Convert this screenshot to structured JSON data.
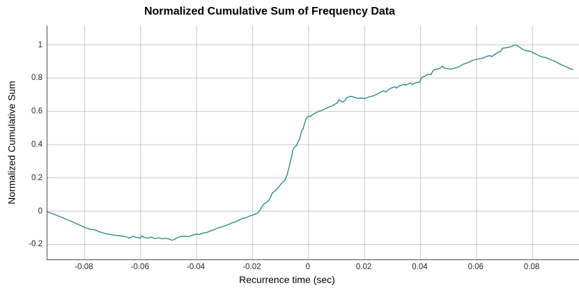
{
  "title": "Normalized Cumulative Sum of Frequency Data",
  "axes": {
    "xlabel": "Recurrence time (sec)",
    "ylabel": "Normalized Cumulative Sum",
    "x_ticks": {
      "values": [
        -0.08,
        -0.06,
        -0.04,
        -0.02,
        0,
        0.02,
        0.04,
        0.06,
        0.08
      ],
      "labels": [
        "-0.08",
        "-0.06",
        "-0.04",
        "-0.02",
        "0",
        "0.02",
        "0.04",
        "0.06",
        "0.08"
      ]
    },
    "y_ticks": {
      "values": [
        -0.2,
        0,
        0.2,
        0.4,
        0.6,
        0.8,
        1
      ],
      "labels": [
        "-0.2",
        "0",
        "0.2",
        "0.4",
        "0.6",
        "0.8",
        "1"
      ]
    }
  },
  "colors": {
    "line": "#2c8c8c",
    "grid": "#c7c7c7",
    "axis": "#4d4d4d",
    "background": "#ffffff",
    "text": "#262626"
  },
  "chart_data": {
    "type": "line",
    "title": "Normalized Cumulative Sum of Frequency Data",
    "xlabel": "Recurrence time (sec)",
    "ylabel": "Normalized Cumulative Sum",
    "xlim": [
      -0.0933,
      0.0969
    ],
    "ylim": [
      -0.29,
      1.115
    ],
    "grid": true,
    "legend": "none",
    "points": [
      [
        -0.0933,
        -0.004
      ],
      [
        -0.092,
        -0.012
      ],
      [
        -0.0907,
        -0.02
      ],
      [
        -0.0894,
        -0.029
      ],
      [
        -0.0881,
        -0.038
      ],
      [
        -0.0868,
        -0.047
      ],
      [
        -0.0855,
        -0.056
      ],
      [
        -0.0842,
        -0.065
      ],
      [
        -0.0829,
        -0.075
      ],
      [
        -0.0816,
        -0.085
      ],
      [
        -0.0803,
        -0.095
      ],
      [
        -0.079,
        -0.104
      ],
      [
        -0.0777,
        -0.11
      ],
      [
        -0.0764,
        -0.112
      ],
      [
        -0.0751,
        -0.122
      ],
      [
        -0.0738,
        -0.128
      ],
      [
        -0.0725,
        -0.135
      ],
      [
        -0.0712,
        -0.139
      ],
      [
        -0.0699,
        -0.143
      ],
      [
        -0.0686,
        -0.146
      ],
      [
        -0.0673,
        -0.148
      ],
      [
        -0.066,
        -0.151
      ],
      [
        -0.0647,
        -0.156
      ],
      [
        -0.064,
        -0.162
      ],
      [
        -0.0634,
        -0.158
      ],
      [
        -0.0627,
        -0.15
      ],
      [
        -0.0621,
        -0.155
      ],
      [
        -0.0614,
        -0.158
      ],
      [
        -0.0601,
        -0.163
      ],
      [
        -0.0594,
        -0.148
      ],
      [
        -0.0588,
        -0.158
      ],
      [
        -0.0575,
        -0.161
      ],
      [
        -0.0562,
        -0.157
      ],
      [
        -0.0549,
        -0.164
      ],
      [
        -0.0536,
        -0.16
      ],
      [
        -0.0523,
        -0.166
      ],
      [
        -0.051,
        -0.163
      ],
      [
        -0.0497,
        -0.168
      ],
      [
        -0.0488,
        -0.175
      ],
      [
        -0.0478,
        -0.17
      ],
      [
        -0.0468,
        -0.158
      ],
      [
        -0.0455,
        -0.152
      ],
      [
        -0.0442,
        -0.15
      ],
      [
        -0.0429,
        -0.153
      ],
      [
        -0.0416,
        -0.146
      ],
      [
        -0.0403,
        -0.139
      ],
      [
        -0.039,
        -0.14
      ],
      [
        -0.0377,
        -0.132
      ],
      [
        -0.0364,
        -0.128
      ],
      [
        -0.0351,
        -0.119
      ],
      [
        -0.0338,
        -0.112
      ],
      [
        -0.0325,
        -0.102
      ],
      [
        -0.0312,
        -0.096
      ],
      [
        -0.0299,
        -0.089
      ],
      [
        -0.0286,
        -0.08
      ],
      [
        -0.0273,
        -0.07
      ],
      [
        -0.026,
        -0.064
      ],
      [
        -0.0247,
        -0.052
      ],
      [
        -0.0234,
        -0.043
      ],
      [
        -0.0221,
        -0.038
      ],
      [
        -0.0208,
        -0.028
      ],
      [
        -0.0195,
        -0.021
      ],
      [
        -0.0182,
        -0.011
      ],
      [
        -0.0175,
        0.002
      ],
      [
        -0.0168,
        0.022
      ],
      [
        -0.0161,
        0.04
      ],
      [
        -0.0155,
        0.048
      ],
      [
        -0.0148,
        0.055
      ],
      [
        -0.0142,
        0.065
      ],
      [
        -0.0135,
        0.085
      ],
      [
        -0.0129,
        0.11
      ],
      [
        -0.0122,
        0.118
      ],
      [
        -0.0116,
        0.128
      ],
      [
        -0.0109,
        0.14
      ],
      [
        -0.0102,
        0.155
      ],
      [
        -0.0096,
        0.168
      ],
      [
        -0.0089,
        0.178
      ],
      [
        -0.0083,
        0.192
      ],
      [
        -0.0076,
        0.22
      ],
      [
        -0.007,
        0.262
      ],
      [
        -0.0066,
        0.29
      ],
      [
        -0.006,
        0.33
      ],
      [
        -0.0056,
        0.368
      ],
      [
        -0.0052,
        0.38
      ],
      [
        -0.0047,
        0.39
      ],
      [
        -0.0042,
        0.395
      ],
      [
        -0.0037,
        0.42
      ],
      [
        -0.0032,
        0.432
      ],
      [
        -0.0027,
        0.465
      ],
      [
        -0.0023,
        0.488
      ],
      [
        -0.0019,
        0.496
      ],
      [
        -0.0014,
        0.528
      ],
      [
        -0.0009,
        0.555
      ],
      [
        -0.0004,
        0.566
      ],
      [
        0,
        0.572
      ],
      [
        0.0006,
        0.568
      ],
      [
        0.0013,
        0.579
      ],
      [
        0.0021,
        0.586
      ],
      [
        0.0028,
        0.593
      ],
      [
        0.0036,
        0.6
      ],
      [
        0.0049,
        0.607
      ],
      [
        0.0061,
        0.616
      ],
      [
        0.0074,
        0.627
      ],
      [
        0.0086,
        0.634
      ],
      [
        0.0095,
        0.645
      ],
      [
        0.0103,
        0.65
      ],
      [
        0.0109,
        0.67
      ],
      [
        0.0117,
        0.66
      ],
      [
        0.0124,
        0.656
      ],
      [
        0.0131,
        0.668
      ],
      [
        0.0136,
        0.682
      ],
      [
        0.0145,
        0.688
      ],
      [
        0.0153,
        0.69
      ],
      [
        0.0161,
        0.687
      ],
      [
        0.017,
        0.681
      ],
      [
        0.0177,
        0.678
      ],
      [
        0.019,
        0.68
      ],
      [
        0.0202,
        0.678
      ],
      [
        0.0211,
        0.684
      ],
      [
        0.0219,
        0.689
      ],
      [
        0.0228,
        0.692
      ],
      [
        0.0236,
        0.696
      ],
      [
        0.0244,
        0.703
      ],
      [
        0.0252,
        0.71
      ],
      [
        0.0261,
        0.718
      ],
      [
        0.0269,
        0.724
      ],
      [
        0.0277,
        0.717
      ],
      [
        0.0285,
        0.73
      ],
      [
        0.0293,
        0.738
      ],
      [
        0.0302,
        0.745
      ],
      [
        0.031,
        0.748
      ],
      [
        0.0314,
        0.74
      ],
      [
        0.0323,
        0.752
      ],
      [
        0.0331,
        0.756
      ],
      [
        0.0339,
        0.762
      ],
      [
        0.0348,
        0.758
      ],
      [
        0.0356,
        0.764
      ],
      [
        0.0364,
        0.77
      ],
      [
        0.0372,
        0.762
      ],
      [
        0.0381,
        0.77
      ],
      [
        0.0389,
        0.774
      ],
      [
        0.0397,
        0.776
      ],
      [
        0.0401,
        0.79
      ],
      [
        0.0405,
        0.805
      ],
      [
        0.0414,
        0.81
      ],
      [
        0.0422,
        0.818
      ],
      [
        0.043,
        0.823
      ],
      [
        0.0438,
        0.82
      ],
      [
        0.0443,
        0.84
      ],
      [
        0.0451,
        0.852
      ],
      [
        0.0459,
        0.855
      ],
      [
        0.0468,
        0.857
      ],
      [
        0.0478,
        0.872
      ],
      [
        0.0484,
        0.862
      ],
      [
        0.0493,
        0.858
      ],
      [
        0.0501,
        0.856
      ],
      [
        0.0509,
        0.855
      ],
      [
        0.0517,
        0.858
      ],
      [
        0.0526,
        0.862
      ],
      [
        0.0534,
        0.866
      ],
      [
        0.0542,
        0.872
      ],
      [
        0.0551,
        0.882
      ],
      [
        0.0559,
        0.887
      ],
      [
        0.0567,
        0.892
      ],
      [
        0.0576,
        0.897
      ],
      [
        0.0584,
        0.905
      ],
      [
        0.0592,
        0.91
      ],
      [
        0.0601,
        0.913
      ],
      [
        0.0609,
        0.916
      ],
      [
        0.0617,
        0.919
      ],
      [
        0.0625,
        0.921
      ],
      [
        0.0633,
        0.928
      ],
      [
        0.0642,
        0.933
      ],
      [
        0.065,
        0.935
      ],
      [
        0.0654,
        0.928
      ],
      [
        0.0663,
        0.94
      ],
      [
        0.0671,
        0.948
      ],
      [
        0.0679,
        0.957
      ],
      [
        0.0687,
        0.961
      ],
      [
        0.0692,
        0.979
      ],
      [
        0.07,
        0.981
      ],
      [
        0.0708,
        0.983
      ],
      [
        0.0717,
        0.986
      ],
      [
        0.0725,
        0.99
      ],
      [
        0.0733,
        0.997
      ],
      [
        0.074,
        1.0
      ],
      [
        0.0748,
        0.993
      ],
      [
        0.0756,
        0.984
      ],
      [
        0.0764,
        0.975
      ],
      [
        0.0772,
        0.969
      ],
      [
        0.078,
        0.965
      ],
      [
        0.0788,
        0.962
      ],
      [
        0.0796,
        0.958
      ],
      [
        0.0804,
        0.952
      ],
      [
        0.0812,
        0.945
      ],
      [
        0.082,
        0.938
      ],
      [
        0.0829,
        0.931
      ],
      [
        0.0837,
        0.927
      ],
      [
        0.0845,
        0.925
      ],
      [
        0.0853,
        0.921
      ],
      [
        0.0861,
        0.914
      ],
      [
        0.087,
        0.908
      ],
      [
        0.0878,
        0.902
      ],
      [
        0.0886,
        0.897
      ],
      [
        0.0894,
        0.888
      ],
      [
        0.0902,
        0.882
      ],
      [
        0.091,
        0.876
      ],
      [
        0.0918,
        0.87
      ],
      [
        0.0926,
        0.864
      ],
      [
        0.0934,
        0.857
      ],
      [
        0.0945,
        0.852
      ]
    ]
  }
}
